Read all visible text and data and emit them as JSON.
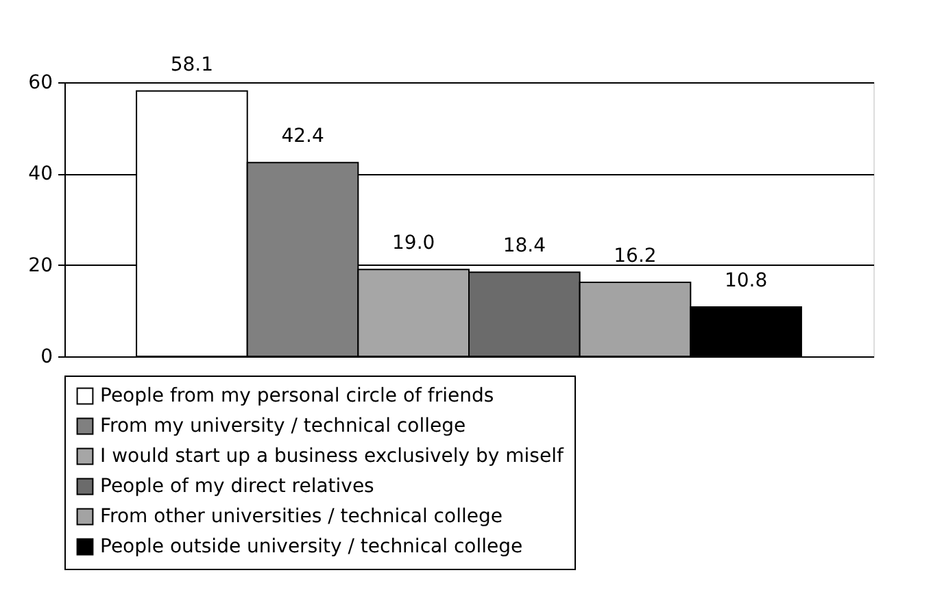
{
  "chart_data": {
    "type": "bar",
    "categories": [
      null
    ],
    "series": [
      {
        "name": "People from my personal circle of friends",
        "color": "#ffffff",
        "values": [
          58.1
        ]
      },
      {
        "name": "From my university / technical college",
        "color": "#808080",
        "values": [
          42.4
        ]
      },
      {
        "name": "I would start up a business exclusively by miself",
        "color": "#a6a6a6",
        "values": [
          19.0
        ]
      },
      {
        "name": "People of my direct relatives",
        "color": "#6b6b6b",
        "values": [
          18.4
        ]
      },
      {
        "name": "From other universities / technical college",
        "color": "#a3a3a3",
        "values": [
          16.2
        ]
      },
      {
        "name": "People outside university / technical college",
        "color": "#000000",
        "values": [
          10.8
        ]
      }
    ],
    "value_labels": [
      "58.1",
      "42.4",
      "19.0",
      "18.4",
      "16.2",
      "10.8"
    ],
    "ylim": [
      0,
      60
    ],
    "yticks": [
      0,
      20,
      40,
      60
    ],
    "grid": "y",
    "legend": "bottom"
  }
}
